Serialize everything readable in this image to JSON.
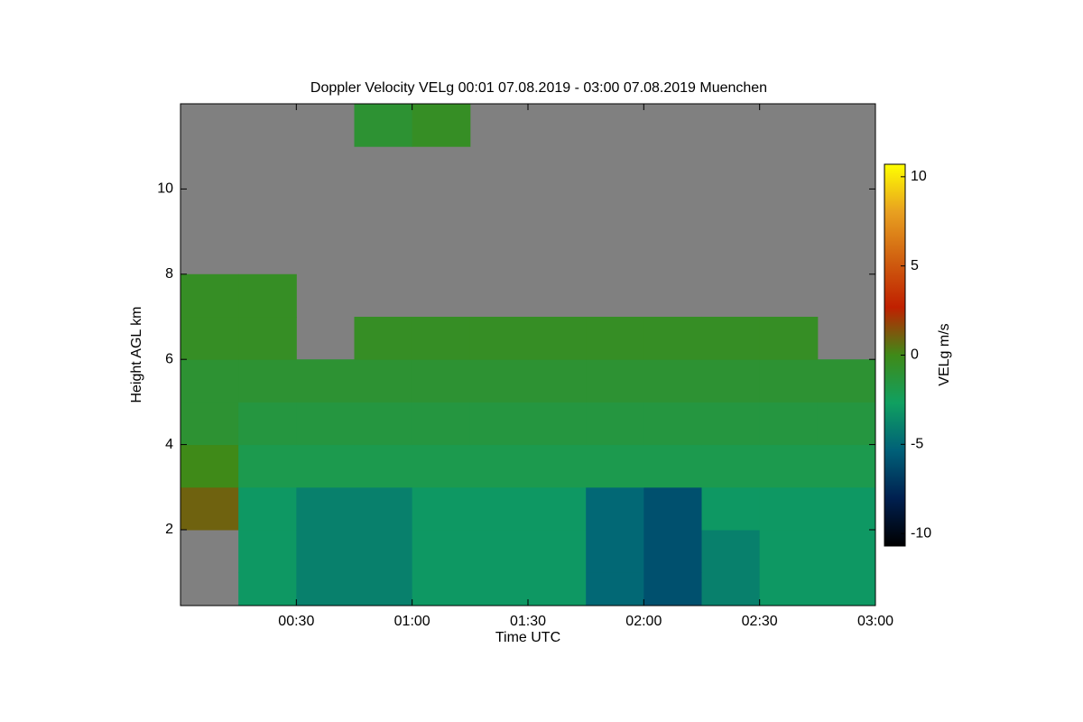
{
  "chart_data": {
    "type": "heatmap",
    "title": "Doppler Velocity VELg   00:01 07.08.2019 - 03:00 07.08.2019 Muenchen",
    "xlabel": "Time UTC",
    "ylabel": "Height AGL km",
    "colorbar_label": "VELg m/s",
    "x": [
      0,
      15,
      30,
      45,
      60,
      75,
      90,
      105,
      120,
      135,
      150,
      165,
      180
    ],
    "y": [
      0.22,
      1,
      2,
      3,
      4,
      5,
      6,
      7,
      8,
      9,
      10,
      11,
      12
    ],
    "z": [
      [
        null,
        -3,
        -4,
        -4,
        -3,
        -3,
        -3,
        -5,
        -6,
        -4,
        -3,
        -3
      ],
      [
        null,
        -3,
        -4,
        -4,
        -3,
        -3,
        -3,
        -5,
        -6,
        -4,
        -3,
        -3
      ],
      [
        1,
        -3,
        -4,
        -4,
        -3,
        -3,
        -3,
        -5,
        -6,
        -3,
        -3,
        -3
      ],
      [
        0,
        -2,
        -2,
        -2,
        -2,
        -2,
        -2,
        -2,
        -2,
        -2,
        -2,
        -2
      ],
      [
        -1,
        -1.5,
        -1.5,
        -1.5,
        -1.5,
        -1.5,
        -1.5,
        -1.5,
        -1.5,
        -1.5,
        -1.5,
        -1.5
      ],
      [
        -1,
        -1,
        -1,
        -1,
        -1,
        -1,
        -1,
        -1,
        -1,
        -1,
        -1,
        -1
      ],
      [
        -0.5,
        -0.5,
        null,
        -0.5,
        -0.5,
        -0.5,
        -0.5,
        -0.5,
        -0.5,
        -0.5,
        -0.5,
        null
      ],
      [
        -0.5,
        -0.5,
        null,
        null,
        null,
        null,
        null,
        null,
        null,
        null,
        null,
        null
      ],
      [
        null,
        null,
        null,
        null,
        null,
        null,
        null,
        null,
        null,
        null,
        null,
        null
      ],
      [
        null,
        null,
        null,
        null,
        null,
        null,
        null,
        null,
        null,
        null,
        null,
        null
      ],
      [
        null,
        null,
        null,
        null,
        null,
        null,
        null,
        null,
        null,
        null,
        null,
        null
      ],
      [
        null,
        null,
        null,
        -1,
        -0.5,
        null,
        null,
        null,
        null,
        null,
        null,
        null
      ]
    ],
    "xlim": [
      0,
      180
    ],
    "xticks": [
      {
        "value": 30,
        "label": "00:30"
      },
      {
        "value": 60,
        "label": "01:00"
      },
      {
        "value": 90,
        "label": "01:30"
      },
      {
        "value": 120,
        "label": "02:00"
      },
      {
        "value": 150,
        "label": "02:30"
      },
      {
        "value": 180,
        "label": "03:00"
      }
    ],
    "ylim": [
      0.22,
      12
    ],
    "yticks": [
      2,
      4,
      6,
      8,
      10
    ],
    "zlim": [
      -10.7,
      10.7
    ],
    "zticks": [
      10,
      5,
      0,
      -5,
      -10
    ],
    "colormap": [
      "#000000",
      "#002050",
      "#006078",
      "#10a060",
      "#3f8a18",
      "#c02000",
      "#d06010",
      "#e8a020",
      "#ffff00"
    ],
    "missing_color": "#808080"
  }
}
